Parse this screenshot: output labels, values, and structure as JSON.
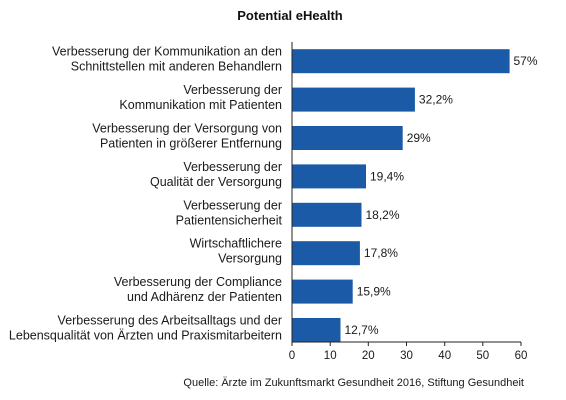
{
  "chart_data": {
    "type": "bar",
    "orientation": "horizontal",
    "title": "Potential eHealth",
    "categories": [
      [
        "Verbesserung der Kommunikation an den",
        "Schnittstellen mit anderen Behandlern"
      ],
      [
        "Verbesserung der",
        "Kommunikation mit Patienten"
      ],
      [
        "Verbesserung der Versorgung von",
        "Patienten in größerer Entfernung"
      ],
      [
        "Verbesserung der",
        "Qualität der Versorgung"
      ],
      [
        "Verbesserung der",
        "Patientensicherheit"
      ],
      [
        "Wirtschaftlichere",
        "Versorgung"
      ],
      [
        "Verbesserung der Compliance",
        "und Adhärenz der Patienten"
      ],
      [
        "Verbesserung des Arbeitsalltags und der",
        "Lebensqualität von Ärzten und Praxismitarbeitern"
      ]
    ],
    "values": [
      57,
      32.2,
      29,
      19.4,
      18.2,
      17.8,
      15.9,
      12.7
    ],
    "value_labels": [
      "57%",
      "32,2%",
      "29%",
      "19,4%",
      "18,2%",
      "17,8%",
      "15,9%",
      "12,7%"
    ],
    "xlim": [
      0,
      60
    ],
    "xticks": [
      0,
      10,
      20,
      30,
      40,
      50,
      60
    ],
    "bar_color": "#1a5aa6",
    "grid": false,
    "source": "Quelle: Ärzte im Zukunftsmarkt Gesundheit 2016, Stiftung Gesundheit"
  }
}
